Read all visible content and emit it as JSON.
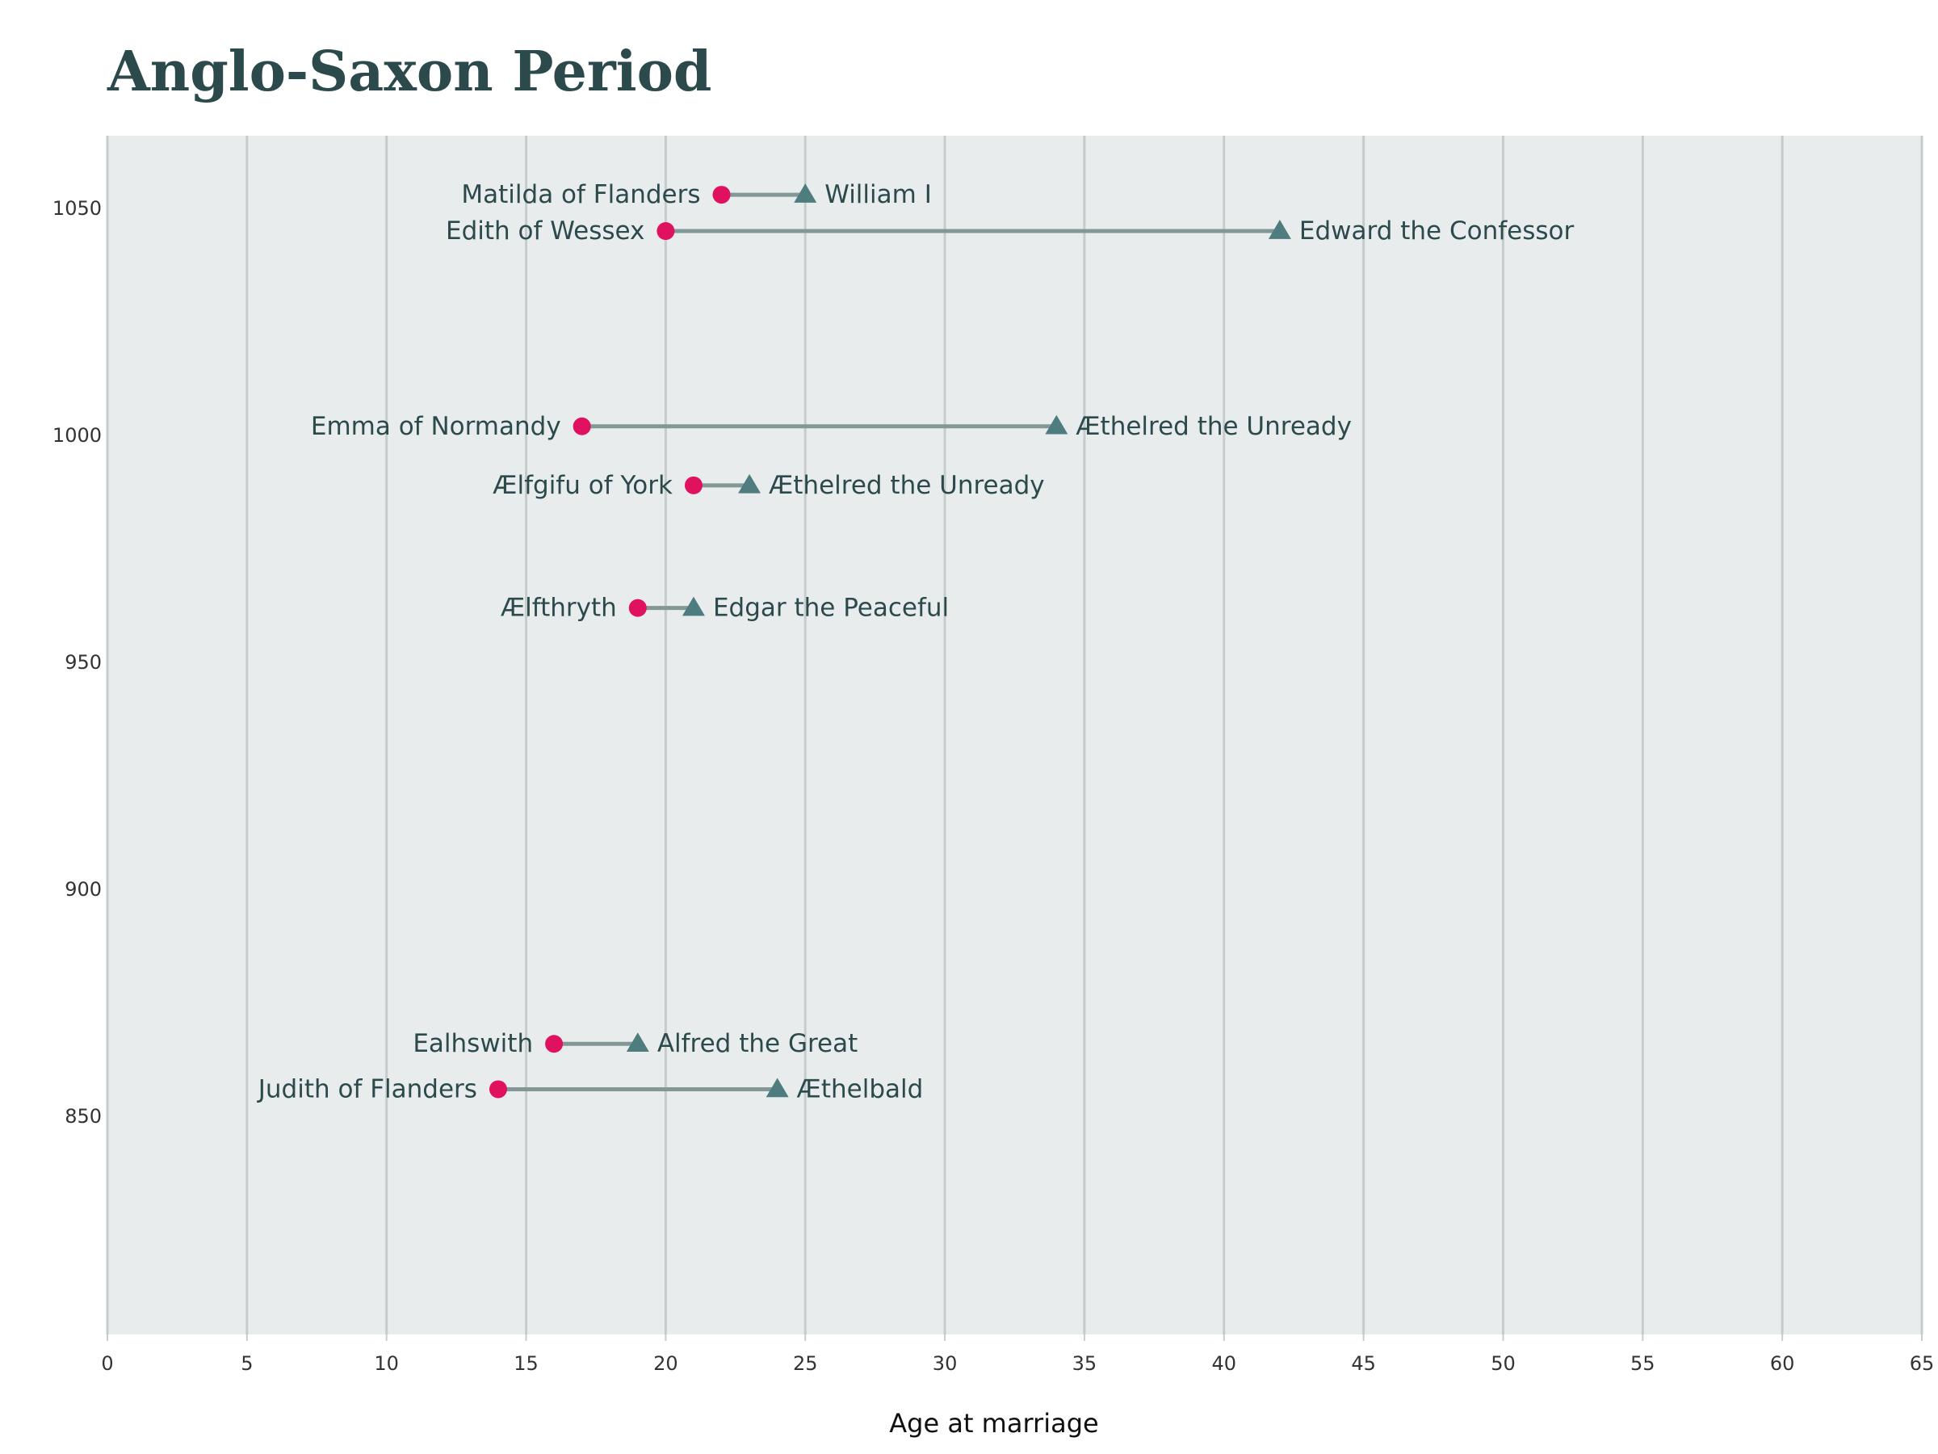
{
  "chart_data": {
    "type": "dumbbell",
    "title": "Anglo-Saxon Period",
    "xlabel": "Age at marriage",
    "ylabel": "",
    "xlim": [
      0,
      65
    ],
    "ylim": [
      1066,
      802
    ],
    "x_ticks": [
      "0",
      "5",
      "10",
      "15",
      "20",
      "25",
      "30",
      "35",
      "40",
      "45",
      "50",
      "55",
      "60",
      "65"
    ],
    "y_ticks": [
      "850",
      "900",
      "950",
      "1000",
      "1050"
    ],
    "grid": "vertical",
    "colors": {
      "background": "#e8ecec",
      "grid": "#c6cccc",
      "connector": "#829896",
      "bride_marker": "#e0115f",
      "groom_marker": "#4f7d7f",
      "label_text": "#2c4a4c",
      "title_text": "#2c4a4c"
    },
    "marker_shapes": {
      "bride": "circle",
      "groom": "triangle"
    },
    "marriages": [
      {
        "year": 856,
        "bride": "Judith of Flanders",
        "bride_age": 14,
        "groom": "Æthelbald",
        "groom_age": 24
      },
      {
        "year": 866,
        "bride": "Ealhswith",
        "bride_age": 16,
        "groom": "Alfred the Great",
        "groom_age": 19
      },
      {
        "year": 962,
        "bride": "Ælfthryth",
        "bride_age": 19,
        "groom": "Edgar the Peaceful",
        "groom_age": 21
      },
      {
        "year": 989,
        "bride": "Ælfgifu of York",
        "bride_age": 21,
        "groom": "Æthelred the Unready",
        "groom_age": 23
      },
      {
        "year": 1002,
        "bride": "Emma of Normandy",
        "bride_age": 17,
        "groom": "Æthelred the Unready",
        "groom_age": 34
      },
      {
        "year": 1045,
        "bride": "Edith of Wessex",
        "bride_age": 20,
        "groom": "Edward the Confessor",
        "groom_age": 42
      },
      {
        "year": 1053,
        "bride": "Matilda of Flanders",
        "bride_age": 22,
        "groom": "William I",
        "groom_age": 25
      }
    ]
  }
}
